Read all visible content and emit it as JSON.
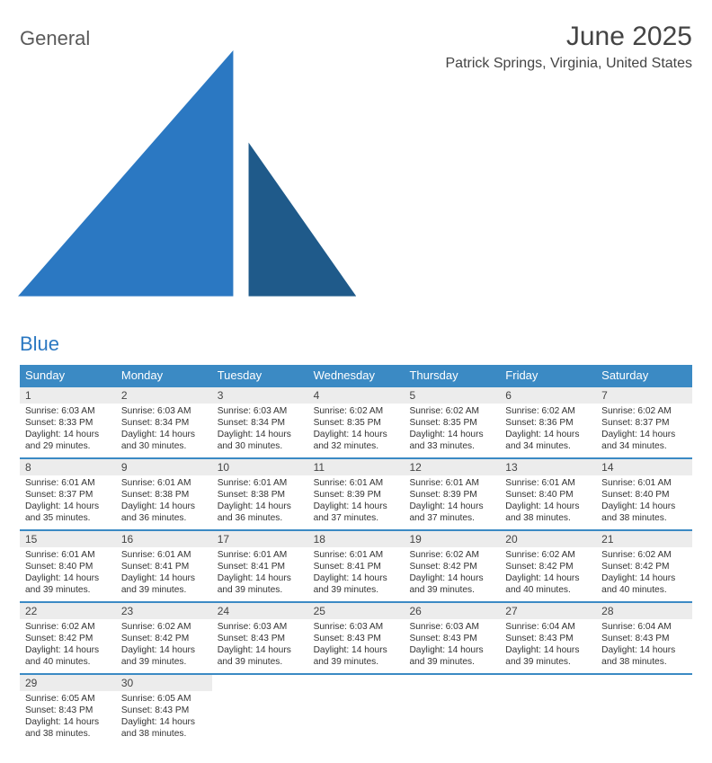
{
  "logo": {
    "word1": "General",
    "word2": "Blue"
  },
  "header": {
    "month_title": "June 2025",
    "location": "Patrick Springs, Virginia, United States"
  },
  "colors": {
    "header_bg": "#3b8ac4",
    "header_text": "#ffffff",
    "daynum_bg": "#ececec",
    "week_border": "#3b8ac4",
    "logo_text1": "#5a5a5a",
    "logo_text2": "#2b78c2"
  },
  "day_names": [
    "Sunday",
    "Monday",
    "Tuesday",
    "Wednesday",
    "Thursday",
    "Friday",
    "Saturday"
  ],
  "weeks": [
    [
      {
        "n": "1",
        "sunrise": "Sunrise: 6:03 AM",
        "sunset": "Sunset: 8:33 PM",
        "day1": "Daylight: 14 hours",
        "day2": "and 29 minutes."
      },
      {
        "n": "2",
        "sunrise": "Sunrise: 6:03 AM",
        "sunset": "Sunset: 8:34 PM",
        "day1": "Daylight: 14 hours",
        "day2": "and 30 minutes."
      },
      {
        "n": "3",
        "sunrise": "Sunrise: 6:03 AM",
        "sunset": "Sunset: 8:34 PM",
        "day1": "Daylight: 14 hours",
        "day2": "and 30 minutes."
      },
      {
        "n": "4",
        "sunrise": "Sunrise: 6:02 AM",
        "sunset": "Sunset: 8:35 PM",
        "day1": "Daylight: 14 hours",
        "day2": "and 32 minutes."
      },
      {
        "n": "5",
        "sunrise": "Sunrise: 6:02 AM",
        "sunset": "Sunset: 8:35 PM",
        "day1": "Daylight: 14 hours",
        "day2": "and 33 minutes."
      },
      {
        "n": "6",
        "sunrise": "Sunrise: 6:02 AM",
        "sunset": "Sunset: 8:36 PM",
        "day1": "Daylight: 14 hours",
        "day2": "and 34 minutes."
      },
      {
        "n": "7",
        "sunrise": "Sunrise: 6:02 AM",
        "sunset": "Sunset: 8:37 PM",
        "day1": "Daylight: 14 hours",
        "day2": "and 34 minutes."
      }
    ],
    [
      {
        "n": "8",
        "sunrise": "Sunrise: 6:01 AM",
        "sunset": "Sunset: 8:37 PM",
        "day1": "Daylight: 14 hours",
        "day2": "and 35 minutes."
      },
      {
        "n": "9",
        "sunrise": "Sunrise: 6:01 AM",
        "sunset": "Sunset: 8:38 PM",
        "day1": "Daylight: 14 hours",
        "day2": "and 36 minutes."
      },
      {
        "n": "10",
        "sunrise": "Sunrise: 6:01 AM",
        "sunset": "Sunset: 8:38 PM",
        "day1": "Daylight: 14 hours",
        "day2": "and 36 minutes."
      },
      {
        "n": "11",
        "sunrise": "Sunrise: 6:01 AM",
        "sunset": "Sunset: 8:39 PM",
        "day1": "Daylight: 14 hours",
        "day2": "and 37 minutes."
      },
      {
        "n": "12",
        "sunrise": "Sunrise: 6:01 AM",
        "sunset": "Sunset: 8:39 PM",
        "day1": "Daylight: 14 hours",
        "day2": "and 37 minutes."
      },
      {
        "n": "13",
        "sunrise": "Sunrise: 6:01 AM",
        "sunset": "Sunset: 8:40 PM",
        "day1": "Daylight: 14 hours",
        "day2": "and 38 minutes."
      },
      {
        "n": "14",
        "sunrise": "Sunrise: 6:01 AM",
        "sunset": "Sunset: 8:40 PM",
        "day1": "Daylight: 14 hours",
        "day2": "and 38 minutes."
      }
    ],
    [
      {
        "n": "15",
        "sunrise": "Sunrise: 6:01 AM",
        "sunset": "Sunset: 8:40 PM",
        "day1": "Daylight: 14 hours",
        "day2": "and 39 minutes."
      },
      {
        "n": "16",
        "sunrise": "Sunrise: 6:01 AM",
        "sunset": "Sunset: 8:41 PM",
        "day1": "Daylight: 14 hours",
        "day2": "and 39 minutes."
      },
      {
        "n": "17",
        "sunrise": "Sunrise: 6:01 AM",
        "sunset": "Sunset: 8:41 PM",
        "day1": "Daylight: 14 hours",
        "day2": "and 39 minutes."
      },
      {
        "n": "18",
        "sunrise": "Sunrise: 6:01 AM",
        "sunset": "Sunset: 8:41 PM",
        "day1": "Daylight: 14 hours",
        "day2": "and 39 minutes."
      },
      {
        "n": "19",
        "sunrise": "Sunrise: 6:02 AM",
        "sunset": "Sunset: 8:42 PM",
        "day1": "Daylight: 14 hours",
        "day2": "and 39 minutes."
      },
      {
        "n": "20",
        "sunrise": "Sunrise: 6:02 AM",
        "sunset": "Sunset: 8:42 PM",
        "day1": "Daylight: 14 hours",
        "day2": "and 40 minutes."
      },
      {
        "n": "21",
        "sunrise": "Sunrise: 6:02 AM",
        "sunset": "Sunset: 8:42 PM",
        "day1": "Daylight: 14 hours",
        "day2": "and 40 minutes."
      }
    ],
    [
      {
        "n": "22",
        "sunrise": "Sunrise: 6:02 AM",
        "sunset": "Sunset: 8:42 PM",
        "day1": "Daylight: 14 hours",
        "day2": "and 40 minutes."
      },
      {
        "n": "23",
        "sunrise": "Sunrise: 6:02 AM",
        "sunset": "Sunset: 8:42 PM",
        "day1": "Daylight: 14 hours",
        "day2": "and 39 minutes."
      },
      {
        "n": "24",
        "sunrise": "Sunrise: 6:03 AM",
        "sunset": "Sunset: 8:43 PM",
        "day1": "Daylight: 14 hours",
        "day2": "and 39 minutes."
      },
      {
        "n": "25",
        "sunrise": "Sunrise: 6:03 AM",
        "sunset": "Sunset: 8:43 PM",
        "day1": "Daylight: 14 hours",
        "day2": "and 39 minutes."
      },
      {
        "n": "26",
        "sunrise": "Sunrise: 6:03 AM",
        "sunset": "Sunset: 8:43 PM",
        "day1": "Daylight: 14 hours",
        "day2": "and 39 minutes."
      },
      {
        "n": "27",
        "sunrise": "Sunrise: 6:04 AM",
        "sunset": "Sunset: 8:43 PM",
        "day1": "Daylight: 14 hours",
        "day2": "and 39 minutes."
      },
      {
        "n": "28",
        "sunrise": "Sunrise: 6:04 AM",
        "sunset": "Sunset: 8:43 PM",
        "day1": "Daylight: 14 hours",
        "day2": "and 38 minutes."
      }
    ],
    [
      {
        "n": "29",
        "sunrise": "Sunrise: 6:05 AM",
        "sunset": "Sunset: 8:43 PM",
        "day1": "Daylight: 14 hours",
        "day2": "and 38 minutes."
      },
      {
        "n": "30",
        "sunrise": "Sunrise: 6:05 AM",
        "sunset": "Sunset: 8:43 PM",
        "day1": "Daylight: 14 hours",
        "day2": "and 38 minutes."
      },
      {
        "empty": true
      },
      {
        "empty": true
      },
      {
        "empty": true
      },
      {
        "empty": true
      },
      {
        "empty": true
      }
    ]
  ]
}
